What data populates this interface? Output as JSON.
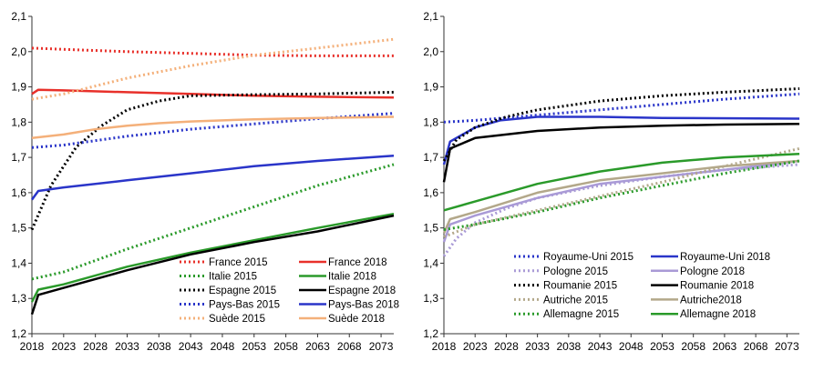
{
  "chart_data": [
    {
      "type": "line",
      "title": "",
      "xlabel": "",
      "ylabel": "",
      "ylim": [
        1.2,
        2.1
      ],
      "xlim": [
        2018,
        2075
      ],
      "x_tick_labels": [
        "2018",
        "2023",
        "2028",
        "2033",
        "2038",
        "2043",
        "2048",
        "2053",
        "2058",
        "2063",
        "2068",
        "2073"
      ],
      "y_tick_labels": [
        "1,2",
        "1,3",
        "1,4",
        "1,5",
        "1,6",
        "1,7",
        "1,8",
        "1,9",
        "2,0",
        "2,1"
      ],
      "grid": false,
      "legend_position": "bottom-right",
      "series": [
        {
          "name": "France 2015",
          "color": "#e8302a",
          "style": "dotted",
          "points": [
            [
              2018,
              2.01
            ],
            [
              2025,
              2.005
            ],
            [
              2033,
              2.0
            ],
            [
              2043,
              1.995
            ],
            [
              2053,
              1.99
            ],
            [
              2063,
              1.988
            ],
            [
              2075,
              1.988
            ]
          ]
        },
        {
          "name": "France 2018",
          "color": "#e8302a",
          "style": "solid",
          "points": [
            [
              2018,
              1.88
            ],
            [
              2019,
              1.892
            ],
            [
              2023,
              1.89
            ],
            [
              2033,
              1.885
            ],
            [
              2043,
              1.88
            ],
            [
              2053,
              1.875
            ],
            [
              2063,
              1.872
            ],
            [
              2075,
              1.87
            ]
          ]
        },
        {
          "name": "Italie 2015",
          "color": "#2a9a2a",
          "style": "dotted",
          "points": [
            [
              2018,
              1.355
            ],
            [
              2023,
              1.375
            ],
            [
              2033,
              1.44
            ],
            [
              2043,
              1.5
            ],
            [
              2053,
              1.56
            ],
            [
              2063,
              1.62
            ],
            [
              2075,
              1.68
            ]
          ]
        },
        {
          "name": "Italie 2018",
          "color": "#2a9a2a",
          "style": "solid",
          "points": [
            [
              2018,
              1.29
            ],
            [
              2019,
              1.325
            ],
            [
              2023,
              1.34
            ],
            [
              2033,
              1.39
            ],
            [
              2043,
              1.43
            ],
            [
              2053,
              1.465
            ],
            [
              2063,
              1.5
            ],
            [
              2075,
              1.54
            ]
          ]
        },
        {
          "name": "Espagne 2015",
          "color": "#000000",
          "style": "dotted",
          "points": [
            [
              2018,
              1.495
            ],
            [
              2021,
              1.62
            ],
            [
              2025,
              1.73
            ],
            [
              2029,
              1.79
            ],
            [
              2033,
              1.835
            ],
            [
              2038,
              1.86
            ],
            [
              2043,
              1.875
            ],
            [
              2053,
              1.878
            ],
            [
              2063,
              1.88
            ],
            [
              2075,
              1.885
            ]
          ]
        },
        {
          "name": "Espagne 2018",
          "color": "#000000",
          "style": "solid",
          "points": [
            [
              2018,
              1.255
            ],
            [
              2019,
              1.31
            ],
            [
              2023,
              1.33
            ],
            [
              2033,
              1.38
            ],
            [
              2043,
              1.425
            ],
            [
              2053,
              1.46
            ],
            [
              2063,
              1.49
            ],
            [
              2075,
              1.535
            ]
          ]
        },
        {
          "name": "Pays-Bas 2015",
          "color": "#2a35c9",
          "style": "dotted",
          "points": [
            [
              2018,
              1.728
            ],
            [
              2023,
              1.735
            ],
            [
              2033,
              1.76
            ],
            [
              2043,
              1.78
            ],
            [
              2053,
              1.795
            ],
            [
              2063,
              1.81
            ],
            [
              2075,
              1.825
            ]
          ]
        },
        {
          "name": "Pays-Bas 2018",
          "color": "#2a35c9",
          "style": "solid",
          "points": [
            [
              2018,
              1.58
            ],
            [
              2019,
              1.605
            ],
            [
              2023,
              1.615
            ],
            [
              2033,
              1.635
            ],
            [
              2043,
              1.655
            ],
            [
              2053,
              1.675
            ],
            [
              2063,
              1.69
            ],
            [
              2075,
              1.705
            ]
          ]
        },
        {
          "name": "Suède 2015",
          "color": "#f4b07a",
          "style": "dotted",
          "points": [
            [
              2018,
              1.865
            ],
            [
              2023,
              1.88
            ],
            [
              2033,
              1.925
            ],
            [
              2043,
              1.96
            ],
            [
              2053,
              1.99
            ],
            [
              2063,
              2.01
            ],
            [
              2075,
              2.035
            ]
          ]
        },
        {
          "name": "Suède 2018",
          "color": "#f4b07a",
          "style": "solid",
          "points": [
            [
              2018,
              1.755
            ],
            [
              2023,
              1.765
            ],
            [
              2028,
              1.78
            ],
            [
              2033,
              1.79
            ],
            [
              2038,
              1.797
            ],
            [
              2043,
              1.802
            ],
            [
              2053,
              1.808
            ],
            [
              2063,
              1.812
            ],
            [
              2075,
              1.815
            ]
          ]
        }
      ]
    },
    {
      "type": "line",
      "title": "",
      "xlabel": "",
      "ylabel": "",
      "ylim": [
        1.2,
        2.1
      ],
      "xlim": [
        2018,
        2075
      ],
      "x_tick_labels": [
        "2018",
        "2023",
        "2028",
        "2033",
        "2038",
        "2043",
        "2048",
        "2053",
        "2058",
        "2063",
        "2068",
        "2073"
      ],
      "y_tick_labels": [
        "1,2",
        "1,3",
        "1,4",
        "1,5",
        "1,6",
        "1,7",
        "1,8",
        "1,9",
        "2,0",
        "2,1"
      ],
      "grid": false,
      "legend_position": "bottom-right",
      "series": [
        {
          "name": "Royaume-Uni 2015",
          "color": "#2a35c9",
          "style": "dotted",
          "points": [
            [
              2018,
              1.8
            ],
            [
              2023,
              1.805
            ],
            [
              2033,
              1.82
            ],
            [
              2043,
              1.835
            ],
            [
              2053,
              1.85
            ],
            [
              2063,
              1.865
            ],
            [
              2075,
              1.88
            ]
          ]
        },
        {
          "name": "Royaume-Uni 2018",
          "color": "#2a35c9",
          "style": "solid",
          "points": [
            [
              2018,
              1.68
            ],
            [
              2019,
              1.745
            ],
            [
              2023,
              1.785
            ],
            [
              2027,
              1.805
            ],
            [
              2033,
              1.815
            ],
            [
              2043,
              1.815
            ],
            [
              2053,
              1.812
            ],
            [
              2075,
              1.81
            ]
          ]
        },
        {
          "name": "Pologne 2015",
          "color": "#a99ad6",
          "style": "dotted",
          "points": [
            [
              2018,
              1.42
            ],
            [
              2020,
              1.47
            ],
            [
              2023,
              1.515
            ],
            [
              2028,
              1.555
            ],
            [
              2033,
              1.585
            ],
            [
              2043,
              1.62
            ],
            [
              2053,
              1.645
            ],
            [
              2063,
              1.665
            ],
            [
              2075,
              1.68
            ]
          ]
        },
        {
          "name": "Pologne 2018",
          "color": "#a99ad6",
          "style": "solid",
          "points": [
            [
              2018,
              1.46
            ],
            [
              2019,
              1.51
            ],
            [
              2023,
              1.535
            ],
            [
              2033,
              1.585
            ],
            [
              2043,
              1.625
            ],
            [
              2053,
              1.645
            ],
            [
              2063,
              1.665
            ],
            [
              2075,
              1.69
            ]
          ]
        },
        {
          "name": "Roumanie 2015",
          "color": "#000000",
          "style": "dotted",
          "points": [
            [
              2018,
              1.69
            ],
            [
              2020,
              1.75
            ],
            [
              2023,
              1.785
            ],
            [
              2028,
              1.815
            ],
            [
              2033,
              1.835
            ],
            [
              2043,
              1.86
            ],
            [
              2053,
              1.875
            ],
            [
              2063,
              1.885
            ],
            [
              2075,
              1.895
            ]
          ]
        },
        {
          "name": "Roumanie 2018",
          "color": "#000000",
          "style": "solid",
          "points": [
            [
              2018,
              1.63
            ],
            [
              2019,
              1.725
            ],
            [
              2023,
              1.755
            ],
            [
              2033,
              1.775
            ],
            [
              2043,
              1.785
            ],
            [
              2053,
              1.79
            ],
            [
              2063,
              1.793
            ],
            [
              2075,
              1.795
            ]
          ]
        },
        {
          "name": "Autriche 2015",
          "color": "#b3a88a",
          "style": "dotted",
          "points": [
            [
              2018,
              1.475
            ],
            [
              2023,
              1.51
            ],
            [
              2033,
              1.55
            ],
            [
              2043,
              1.59
            ],
            [
              2053,
              1.63
            ],
            [
              2063,
              1.675
            ],
            [
              2075,
              1.725
            ]
          ]
        },
        {
          "name": "Autriche2018",
          "color": "#b3a88a",
          "style": "solid",
          "points": [
            [
              2018,
              1.485
            ],
            [
              2019,
              1.525
            ],
            [
              2023,
              1.545
            ],
            [
              2033,
              1.6
            ],
            [
              2043,
              1.635
            ],
            [
              2053,
              1.655
            ],
            [
              2063,
              1.675
            ],
            [
              2075,
              1.69
            ]
          ]
        },
        {
          "name": "Allemagne 2015",
          "color": "#2a9a2a",
          "style": "dotted",
          "points": [
            [
              2018,
              1.495
            ],
            [
              2023,
              1.51
            ],
            [
              2033,
              1.545
            ],
            [
              2043,
              1.585
            ],
            [
              2053,
              1.62
            ],
            [
              2063,
              1.655
            ],
            [
              2075,
              1.69
            ]
          ]
        },
        {
          "name": "Allemagne 2018",
          "color": "#2a9a2a",
          "style": "solid",
          "points": [
            [
              2018,
              1.55
            ],
            [
              2023,
              1.575
            ],
            [
              2033,
              1.625
            ],
            [
              2043,
              1.66
            ],
            [
              2053,
              1.685
            ],
            [
              2063,
              1.7
            ],
            [
              2075,
              1.71
            ]
          ]
        }
      ]
    }
  ]
}
